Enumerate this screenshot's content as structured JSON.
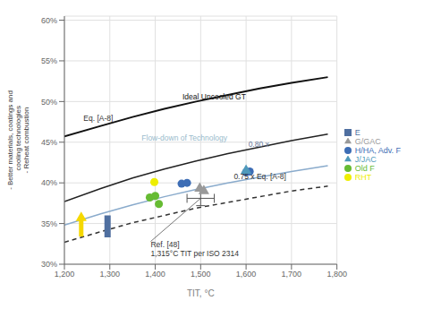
{
  "chart_data": {
    "type": "scatter",
    "xlabel": "TIT, °C",
    "xlim": [
      1200,
      1800
    ],
    "ylim": [
      0.3,
      0.605
    ],
    "xticks": [
      {
        "value": 1200,
        "label": "1,200"
      },
      {
        "value": 1300,
        "label": "1,300"
      },
      {
        "value": 1400,
        "label": "1,400"
      },
      {
        "value": 1500,
        "label": "1,500"
      },
      {
        "value": 1600,
        "label": "1,600"
      },
      {
        "value": 1700,
        "label": "1,700"
      },
      {
        "value": 1800,
        "label": "1,800"
      }
    ],
    "yticks": [
      {
        "value": 0.3,
        "label": "30%"
      },
      {
        "value": 0.35,
        "label": "35%"
      },
      {
        "value": 0.4,
        "label": "40%"
      },
      {
        "value": 0.45,
        "label": "45%"
      },
      {
        "value": 0.5,
        "label": "50%"
      },
      {
        "value": 0.55,
        "label": "55%"
      },
      {
        "value": 0.6,
        "label": "60%"
      }
    ],
    "grid": true,
    "legend": "right",
    "series": [
      {
        "type": "line",
        "color": "#111111",
        "line_style": "solid",
        "x": [
          1200,
          1280,
          1350,
          1420,
          1490,
          1560,
          1630,
          1700,
          1780
        ],
        "values": [
          0.457,
          0.47,
          0.481,
          0.491,
          0.5,
          0.508,
          0.516,
          0.523,
          0.53
        ]
      },
      {
        "type": "line",
        "color": "#222222",
        "line_style": "solid",
        "x": [
          1200,
          1280,
          1350,
          1420,
          1490,
          1560,
          1630,
          1700,
          1780
        ],
        "values": [
          0.377,
          0.393,
          0.406,
          0.417,
          0.427,
          0.436,
          0.444,
          0.452,
          0.46
        ]
      },
      {
        "type": "line",
        "color": "#8aabcc",
        "line_style": "solid",
        "x": [
          1200,
          1280,
          1350,
          1420,
          1490,
          1560,
          1630,
          1700,
          1780
        ],
        "values": [
          0.348,
          0.362,
          0.373,
          0.383,
          0.392,
          0.4,
          0.407,
          0.414,
          0.421
        ]
      },
      {
        "type": "line",
        "color": "#333333",
        "line_style": "dashed",
        "x": [
          1200,
          1280,
          1350,
          1420,
          1490,
          1560,
          1630,
          1700,
          1780
        ],
        "values": [
          0.327,
          0.34,
          0.351,
          0.36,
          0.369,
          0.376,
          0.383,
          0.39,
          0.396
        ]
      },
      {
        "name": "H/HA, Adv. F",
        "type": "scatter",
        "marker": "circle",
        "color": "#3d6db5",
        "x": [
          1458,
          1470,
          1600,
          1608
        ],
        "values": [
          0.399,
          0.4,
          0.413,
          0.414
        ]
      },
      {
        "name": "G/GAC",
        "type": "scatter",
        "marker": "triangle",
        "color": "#999999",
        "x": [
          1498,
          1507
        ],
        "values": [
          0.393,
          0.39
        ]
      },
      {
        "name": "E",
        "type": "range",
        "marker": "square",
        "color": "#4f6fa0",
        "x": [
          1295
        ],
        "low": [
          0.333
        ],
        "high": [
          0.36
        ]
      },
      {
        "name": "J/JAC",
        "type": "scatter",
        "marker": "triangle",
        "color": "#4f99bb",
        "x": [
          1600
        ],
        "values": [
          0.415
        ]
      },
      {
        "name": "RHT",
        "type": "scatter",
        "marker": "circle",
        "color": "#eeee00",
        "x": [
          1398
        ],
        "values": [
          0.401
        ]
      },
      {
        "name": "Old F",
        "type": "scatter",
        "marker": "circle",
        "color": "#66bb33",
        "x": [
          1388,
          1400,
          1408
        ],
        "values": [
          0.382,
          0.384,
          0.374
        ]
      },
      {
        "type": "errorbar",
        "color": "#555555",
        "x": [
          1500
        ],
        "values": [
          0.381
        ],
        "x_error": [
          30
        ],
        "y_error": [
          0.009
        ]
      }
    ],
    "annotations": [
      {
        "text": "Ideal Uncooled GT",
        "x": 1460,
        "y": 0.503,
        "color": "#111111"
      },
      {
        "text": "Eq. [A-8]",
        "x": 1242,
        "y": 0.476,
        "color": "#333333"
      },
      {
        "text": "0.80 x",
        "x": 1605,
        "y": 0.444,
        "color": "#667799"
      },
      {
        "text": "0.75 x Eq. [A-8]",
        "x": 1573,
        "y": 0.405,
        "color": "#333333"
      },
      {
        "text": "Flow-down of Technology",
        "x": 1370,
        "y": 0.452,
        "color": "#99bbcc"
      },
      {
        "text": "Ref. [48]\n1,315°C TIT per ISO 2314",
        "x": 1390,
        "y": 0.328,
        "color": "#333333",
        "arrow_to": [
          1500,
          0.381
        ]
      }
    ],
    "arrows": [
      {
        "x": 1237,
        "y_from": 0.334,
        "y_to": 0.357,
        "color": "#f5d800"
      }
    ],
    "side_text": [
      "- Better materials, coatings and",
      "  cooling technologies",
      "- Reheat combustion"
    ]
  }
}
